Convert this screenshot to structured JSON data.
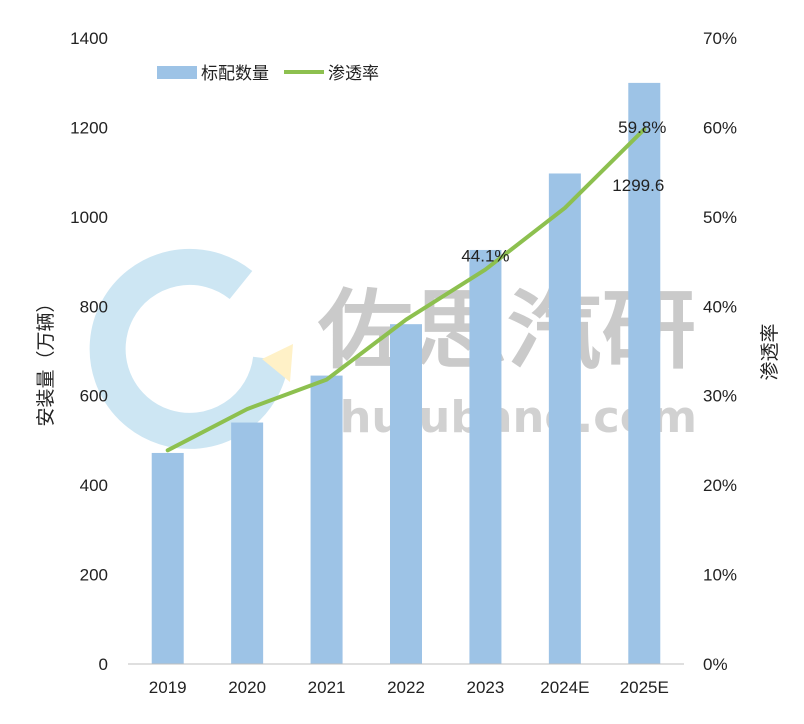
{
  "chart_data": {
    "type": "bar",
    "categories": [
      "2019",
      "2020",
      "2021",
      "2022",
      "2023",
      "2024E",
      "2025E"
    ],
    "series": [
      {
        "name": "标配数量",
        "type": "bar",
        "axis": "left",
        "values": [
          472,
          540,
          645,
          760,
          926,
          1097,
          1299.6
        ],
        "color": "#9DC3E6"
      },
      {
        "name": "渗透率",
        "type": "line",
        "axis": "right",
        "values": [
          23.9,
          28.5,
          31.8,
          38.5,
          44.1,
          51.0,
          59.8
        ],
        "color": "#8DC04F"
      }
    ],
    "ylabel": "安装量（万辆）",
    "y2label": "渗透率",
    "ylim": [
      0,
      1400
    ],
    "yticks": [
      "0",
      "200",
      "400",
      "600",
      "800",
      "1000",
      "1200",
      "1400"
    ],
    "y2lim": [
      0,
      70
    ],
    "y2ticks": [
      "0%",
      "10%",
      "20%",
      "30%",
      "40%",
      "50%",
      "60%",
      "70%"
    ],
    "annotations": [
      {
        "text": "44.1%",
        "series": 1,
        "index": 4
      },
      {
        "text": "59.8%",
        "series": 1,
        "index": 6
      },
      {
        "text": "1299.6",
        "series": 0,
        "index": 6
      }
    ],
    "legend_position": "top-left",
    "grid": false
  },
  "watermark": {
    "cn": "佐思汽研",
    "en": "shujubang.com",
    "logo_colors": [
      "#CDE6F3",
      "#FFF1C7"
    ]
  },
  "axis_color": "#BFBFBF"
}
